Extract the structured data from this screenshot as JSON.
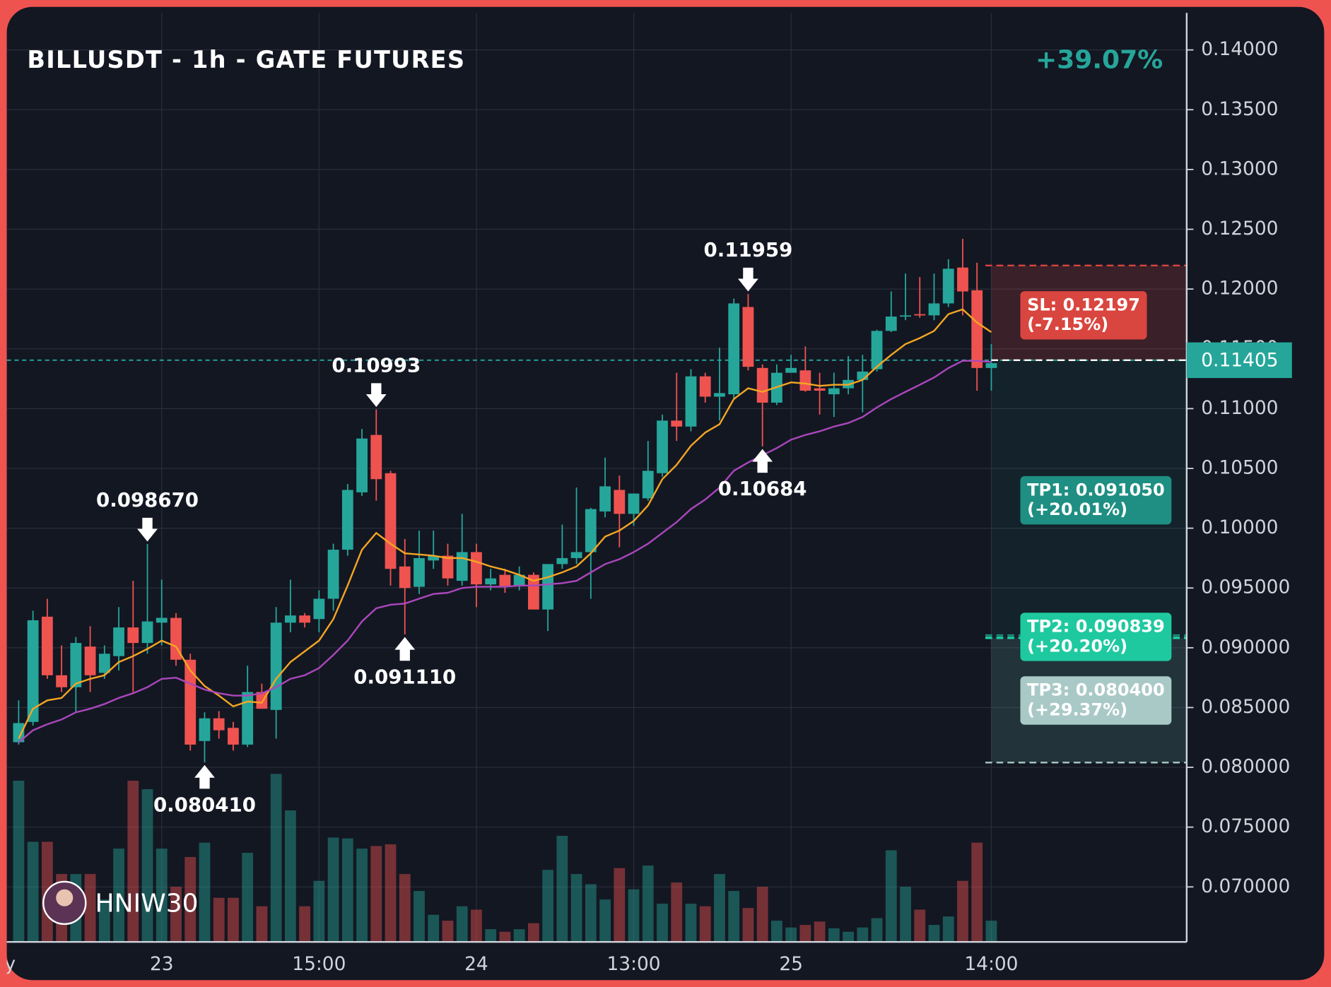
{
  "chart_data": {
    "type": "candlestick",
    "title": "BILLUSDT - 1h - GATE FUTURES",
    "change": "+39.07%",
    "change_color": "#26a69a",
    "watermark": "HNIW30",
    "up_color": "#26a69a",
    "down_color": "#ef5350",
    "open": [
      0.0821,
      0.0838,
      0.0926,
      0.0877,
      0.0867,
      0.0901,
      0.0879,
      0.0893,
      0.0917,
      0.0904,
      0.0921,
      0.0925,
      0.089,
      0.0822,
      0.0841,
      0.0833,
      0.0819,
      0.0863,
      0.0848,
      0.0921,
      0.0927,
      0.0924,
      0.0941,
      0.0982,
      0.103,
      0.1078,
      0.1046,
      0.0968,
      0.0951,
      0.0973,
      0.0977,
      0.0956,
      0.098,
      0.0953,
      0.0961,
      0.0952,
      0.0961,
      0.0932,
      0.097,
      0.0975,
      0.098,
      0.1014,
      0.1032,
      0.1012,
      0.1025,
      0.1046,
      0.109,
      0.1085,
      0.1127,
      0.111,
      0.1112,
      0.1185,
      0.1134,
      0.1105,
      0.113,
      0.1132,
      0.1117,
      0.1112,
      0.1117,
      0.1124,
      0.1133,
      0.1165,
      0.1177,
      0.1179,
      0.1178,
      0.1188,
      0.1218,
      0.1199,
      0.1134
    ],
    "high": [
      0.0856,
      0.0931,
      0.0941,
      0.0902,
      0.0909,
      0.0918,
      0.0902,
      0.0934,
      0.0956,
      0.09867,
      0.0957,
      0.0929,
      0.0895,
      0.0846,
      0.0847,
      0.0838,
      0.0885,
      0.087,
      0.0934,
      0.0957,
      0.0929,
      0.0948,
      0.0987,
      0.1037,
      0.1083,
      0.10993,
      0.1048,
      0.0991,
      0.0998,
      0.0998,
      0.0987,
      0.1012,
      0.0987,
      0.0966,
      0.0966,
      0.0968,
      0.0963,
      0.097,
      0.1003,
      0.1034,
      0.1017,
      0.1059,
      0.1044,
      0.1029,
      0.1073,
      0.1095,
      0.113,
      0.1133,
      0.113,
      0.1151,
      0.1192,
      0.11959,
      0.1137,
      0.1137,
      0.1145,
      0.1152,
      0.113,
      0.113,
      0.1144,
      0.1145,
      0.1166,
      0.1198,
      0.1213,
      0.121,
      0.1213,
      0.1225,
      0.1242,
      0.1222,
      0.1154
    ],
    "low": [
      0.0819,
      0.0835,
      0.0874,
      0.0863,
      0.0846,
      0.0863,
      0.0874,
      0.0881,
      0.0863,
      0.0895,
      0.0902,
      0.0885,
      0.0814,
      0.08041,
      0.0824,
      0.0814,
      0.0817,
      0.0849,
      0.0824,
      0.0913,
      0.0917,
      0.0913,
      0.0931,
      0.0977,
      0.1027,
      0.1023,
      0.0952,
      0.09111,
      0.0945,
      0.0966,
      0.0952,
      0.0952,
      0.0934,
      0.0948,
      0.0946,
      0.0948,
      0.0932,
      0.0914,
      0.0966,
      0.097,
      0.0941,
      0.1009,
      0.0984,
      0.1002,
      0.1023,
      0.1043,
      0.1073,
      0.1081,
      0.1105,
      0.109,
      0.1108,
      0.1132,
      0.10684,
      0.1103,
      0.113,
      0.1114,
      0.1095,
      0.1093,
      0.1112,
      0.1097,
      0.1131,
      0.1164,
      0.1174,
      0.1176,
      0.1174,
      0.1185,
      0.1178,
      0.1115,
      0.1115
    ],
    "close": [
      0.0837,
      0.0923,
      0.0877,
      0.0867,
      0.0904,
      0.0877,
      0.0895,
      0.0917,
      0.0904,
      0.0922,
      0.0925,
      0.089,
      0.0819,
      0.0841,
      0.0831,
      0.0819,
      0.0863,
      0.0849,
      0.0921,
      0.0927,
      0.0921,
      0.0941,
      0.0982,
      0.1032,
      0.1075,
      0.1041,
      0.0966,
      0.095,
      0.0975,
      0.0977,
      0.0958,
      0.098,
      0.0953,
      0.0958,
      0.0951,
      0.0961,
      0.0932,
      0.097,
      0.0975,
      0.098,
      0.1016,
      0.1035,
      0.1012,
      0.1029,
      0.1048,
      0.109,
      0.1085,
      0.1127,
      0.111,
      0.1113,
      0.1188,
      0.1135,
      0.1105,
      0.113,
      0.1134,
      0.1115,
      0.1115,
      0.1117,
      0.1124,
      0.1131,
      0.1165,
      0.1177,
      0.1178,
      0.1178,
      0.1188,
      0.1217,
      0.1198,
      0.1134,
      0.1138
    ],
    "volume": [
      190,
      118,
      118,
      80,
      80,
      80,
      50,
      110,
      190,
      180,
      110,
      65,
      100,
      117,
      52,
      52,
      105,
      42,
      198,
      155,
      42,
      72,
      123,
      122,
      110,
      113,
      115,
      80,
      60,
      32,
      25,
      42,
      38,
      15,
      12,
      15,
      22,
      85,
      125,
      80,
      68,
      50,
      87,
      62,
      90,
      45,
      70,
      45,
      42,
      80,
      60,
      40,
      65,
      25,
      17,
      20,
      24,
      16,
      12,
      17,
      28,
      108,
      65,
      38,
      20,
      30,
      72,
      117,
      25
    ],
    "lines": [
      {
        "color": "#f5a623",
        "values": [
          0.0824,
          0.0849,
          0.0856,
          0.0858,
          0.087,
          0.0874,
          0.0877,
          0.0888,
          0.0893,
          0.0899,
          0.0906,
          0.0901,
          0.0881,
          0.0868,
          0.086,
          0.0851,
          0.0855,
          0.0854,
          0.0874,
          0.0888,
          0.0897,
          0.0906,
          0.0924,
          0.0952,
          0.0982,
          0.0996,
          0.0987,
          0.0979,
          0.0978,
          0.0977,
          0.0975,
          0.0975,
          0.0972,
          0.0968,
          0.0965,
          0.0961,
          0.0956,
          0.0959,
          0.0963,
          0.0968,
          0.0979,
          0.0993,
          0.0998,
          0.1006,
          0.1019,
          0.1041,
          0.1053,
          0.1069,
          0.108,
          0.1087,
          0.1108,
          0.1117,
          0.1114,
          0.1118,
          0.1122,
          0.1121,
          0.1119,
          0.112,
          0.112,
          0.1124,
          0.1135,
          0.1145,
          0.1154,
          0.1159,
          0.1165,
          0.1179,
          0.1183,
          0.1172,
          0.1164
        ]
      },
      {
        "color": "#ab47bc",
        "values": [
          0.0821,
          0.0831,
          0.0836,
          0.084,
          0.0846,
          0.0849,
          0.0853,
          0.0858,
          0.0862,
          0.0867,
          0.0874,
          0.0875,
          0.087,
          0.0865,
          0.0862,
          0.086,
          0.086,
          0.0862,
          0.0867,
          0.0874,
          0.0877,
          0.0883,
          0.0894,
          0.0906,
          0.0922,
          0.0933,
          0.0936,
          0.0937,
          0.0941,
          0.0945,
          0.0946,
          0.095,
          0.0951,
          0.0951,
          0.0951,
          0.0952,
          0.0952,
          0.0953,
          0.0954,
          0.0956,
          0.0963,
          0.097,
          0.0974,
          0.098,
          0.0987,
          0.0996,
          0.1005,
          0.1016,
          0.1024,
          0.1034,
          0.1048,
          0.1055,
          0.1061,
          0.1067,
          0.1074,
          0.1078,
          0.1081,
          0.1085,
          0.1088,
          0.1093,
          0.1101,
          0.1108,
          0.1114,
          0.112,
          0.1126,
          0.1134,
          0.114,
          0.114,
          0.1139
        ]
      }
    ],
    "price": 0.11405,
    "price_color": "#26a69a",
    "levels": [
      {
        "label": "SL: 0.12197",
        "sublabel": "(-7.15%)",
        "value": 0.12197,
        "color": "#d9453f"
      },
      {
        "label": "TP1: 0.091050",
        "sublabel": "(+20.01%)",
        "value": 0.09105,
        "color": "#1e8f82"
      },
      {
        "label": "TP2: 0.090839",
        "sublabel": "(+20.20%)",
        "value": 0.090839,
        "color": "#1fc9a0"
      },
      {
        "label": "TP3: 0.080400",
        "sublabel": "(+29.37%)",
        "value": 0.0804,
        "color": "#a9c9c6"
      }
    ],
    "annotations": [
      {
        "label": "0.098670",
        "value": 0.09867
      },
      {
        "label": "0.080410",
        "value": 0.08041
      },
      {
        "label": "0.10993",
        "value": 0.10993
      },
      {
        "label": "0.091110",
        "value": 0.09111
      },
      {
        "label": "0.11959",
        "value": 0.11959
      },
      {
        "label": "0.10684",
        "value": 0.10684
      }
    ],
    "xlim": [
      -0.83,
      81.66
    ],
    "xticks": [
      {
        "value": -1,
        "label": "ay"
      },
      {
        "value": 10,
        "label": "23"
      },
      {
        "value": 21,
        "label": "15:00"
      },
      {
        "value": 32,
        "label": "24"
      },
      {
        "value": 43,
        "label": "13:00"
      },
      {
        "value": 54,
        "label": "25"
      },
      {
        "value": 68,
        "label": "14:00"
      }
    ],
    "ylim": [
      0.0654,
      0.1431
    ],
    "yticks": [
      {
        "value": 0.14,
        "label": "0.14000"
      },
      {
        "value": 0.135,
        "label": "0.13500"
      },
      {
        "value": 0.13,
        "label": "0.13000"
      },
      {
        "value": 0.125,
        "label": "0.12500"
      },
      {
        "value": 0.12,
        "label": "0.12000"
      },
      {
        "value": 0.115,
        "label": "0.11500"
      },
      {
        "value": 0.11,
        "label": "0.11000"
      },
      {
        "value": 0.105,
        "label": "0.10500"
      },
      {
        "value": 0.1,
        "label": "0.10000"
      },
      {
        "value": 0.095,
        "label": "0.095000"
      },
      {
        "value": 0.09,
        "label": "0.090000"
      },
      {
        "value": 0.085,
        "label": "0.085000"
      },
      {
        "value": 0.08,
        "label": "0.080000"
      },
      {
        "value": 0.075,
        "label": "0.075000"
      },
      {
        "value": 0.07,
        "label": "0.070000"
      }
    ],
    "grid": true
  }
}
